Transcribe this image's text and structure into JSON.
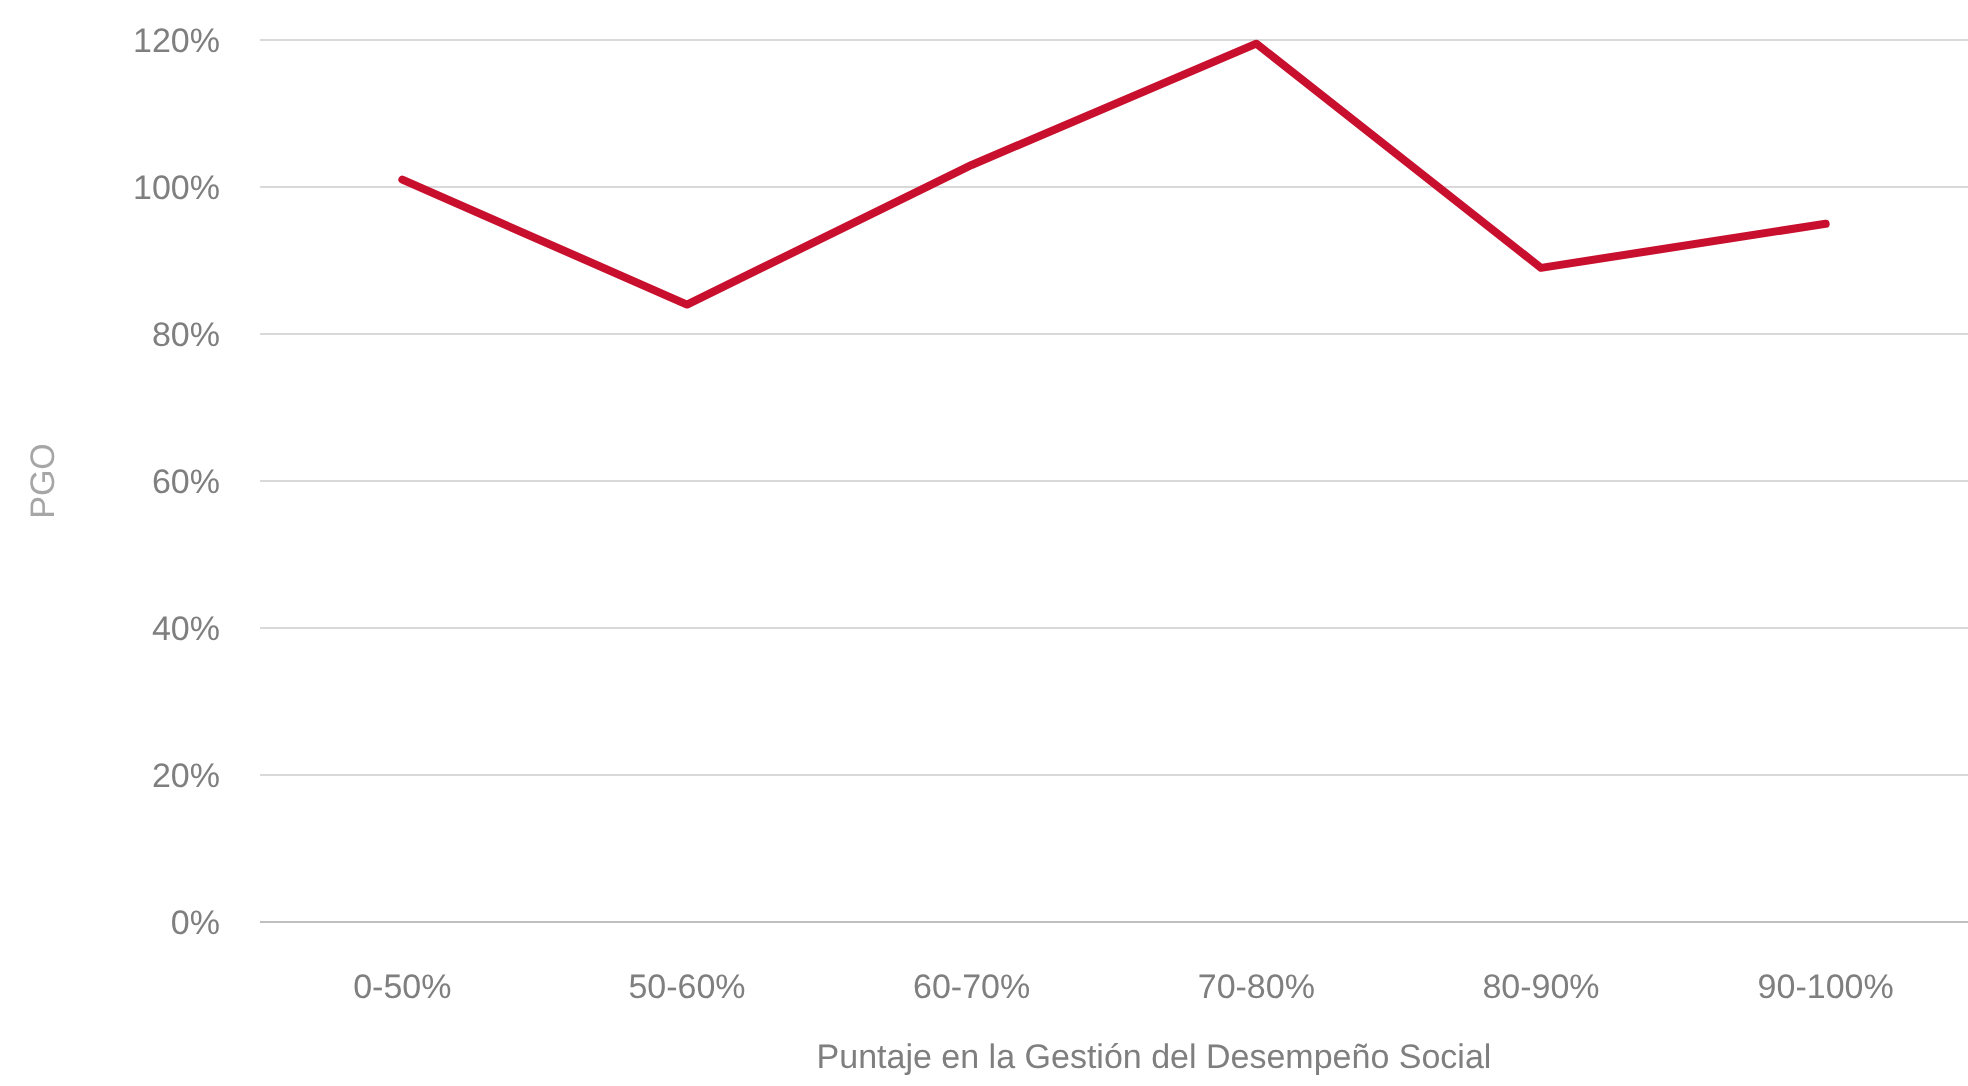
{
  "chart_data": {
    "type": "line",
    "xlabel": "Puntaje en la Gestión del Desempeño Social",
    "ylabel": "PGO",
    "categories": [
      "0-50%",
      "50-60%",
      "60-70%",
      "70-80%",
      "80-90%",
      "90-100%"
    ],
    "series": [
      {
        "color": "#c8102e",
        "values": [
          101,
          84,
          103,
          119.5,
          89,
          95
        ]
      }
    ],
    "ylim": [
      0,
      120
    ],
    "yticks": [
      {
        "value": 0,
        "label": "0%"
      },
      {
        "value": 20,
        "label": "20%"
      },
      {
        "value": 40,
        "label": "40%"
      },
      {
        "value": 60,
        "label": "60%"
      },
      {
        "value": 80,
        "label": "80%"
      },
      {
        "value": 100,
        "label": "100%"
      },
      {
        "value": 120,
        "label": "120%"
      }
    ],
    "grid": "y",
    "marker": "none",
    "line_style": "solid"
  }
}
